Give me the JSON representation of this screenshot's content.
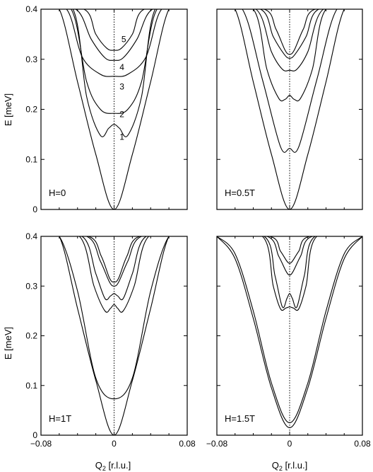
{
  "figure": {
    "ylabel": "E [meV]",
    "xlabel": "Q",
    "xlabel_sub": "2",
    "xlabel_unit": " [r.l.u.]"
  },
  "chart_data": [
    {
      "type": "line",
      "panel_label": "H=0",
      "xlim": [
        -0.08,
        0.08
      ],
      "ylim": [
        0,
        0.4
      ],
      "x_ticks": [
        "−0.08",
        "0",
        "0.08"
      ],
      "y_ticks": [
        "0",
        "0.1",
        "0.2",
        "0.3",
        "0.4"
      ],
      "zero_line": "dotted",
      "branch_labels": [
        {
          "text": "1",
          "x": 0.006,
          "y": 0.145
        },
        {
          "text": "2",
          "x": 0.006,
          "y": 0.19
        },
        {
          "text": "3",
          "x": 0.006,
          "y": 0.245
        },
        {
          "text": "4",
          "x": 0.006,
          "y": 0.284
        },
        {
          "text": "5",
          "x": 0.008,
          "y": 0.34
        }
      ],
      "series": [
        {
          "x": [
            -0.08,
            -0.06,
            -0.04,
            -0.02,
            0,
            0.02,
            0.04,
            0.06,
            0.08
          ],
          "values": [
            0.4,
            0.4,
            0.255,
            0.11,
            0.0,
            0.11,
            0.255,
            0.4,
            0.4
          ]
        },
        {
          "x": [
            -0.08,
            -0.045,
            -0.03,
            -0.015,
            -0.006,
            0,
            0.006,
            0.015,
            0.03,
            0.045,
            0.08
          ],
          "values": [
            0.4,
            0.4,
            0.225,
            0.148,
            0.162,
            0.17,
            0.162,
            0.148,
            0.225,
            0.4,
            0.4
          ]
        },
        {
          "x": [
            -0.08,
            -0.047,
            -0.03,
            -0.015,
            0,
            0.015,
            0.03,
            0.047,
            0.08
          ],
          "values": [
            0.4,
            0.4,
            0.255,
            0.2,
            0.192,
            0.2,
            0.255,
            0.4,
            0.4
          ]
        },
        {
          "x": [
            -0.08,
            -0.052,
            -0.035,
            -0.015,
            0,
            0.015,
            0.035,
            0.052,
            0.08
          ],
          "values": [
            0.4,
            0.4,
            0.305,
            0.27,
            0.266,
            0.27,
            0.305,
            0.4,
            0.4
          ]
        },
        {
          "x": [
            -0.08,
            -0.042,
            -0.025,
            -0.01,
            0,
            0.01,
            0.025,
            0.042,
            0.08
          ],
          "values": [
            0.4,
            0.4,
            0.34,
            0.303,
            0.298,
            0.303,
            0.34,
            0.4,
            0.4
          ]
        },
        {
          "x": [
            -0.08,
            -0.033,
            -0.02,
            -0.008,
            0,
            0.008,
            0.02,
            0.033,
            0.08
          ],
          "values": [
            0.4,
            0.4,
            0.35,
            0.322,
            0.318,
            0.322,
            0.35,
            0.4,
            0.4
          ]
        }
      ]
    },
    {
      "type": "line",
      "panel_label": "H=0.5T",
      "xlim": [
        -0.08,
        0.08
      ],
      "ylim": [
        0,
        0.4
      ],
      "x_ticks": [
        "−0.08",
        "0",
        "0.08"
      ],
      "y_ticks": [
        "0",
        "0.1",
        "0.2",
        "0.3",
        "0.4"
      ],
      "zero_line": "dotted",
      "branch_labels": [],
      "series": [
        {
          "x": [
            -0.08,
            -0.06,
            -0.04,
            -0.02,
            0,
            0.02,
            0.04,
            0.06,
            0.08
          ],
          "values": [
            0.4,
            0.4,
            0.255,
            0.11,
            0.0,
            0.11,
            0.255,
            0.4,
            0.4
          ]
        },
        {
          "x": [
            -0.08,
            -0.052,
            -0.03,
            -0.01,
            0,
            0.01,
            0.03,
            0.052,
            0.08
          ],
          "values": [
            0.4,
            0.4,
            0.26,
            0.125,
            0.122,
            0.125,
            0.26,
            0.4,
            0.4
          ]
        },
        {
          "x": [
            -0.08,
            -0.04,
            -0.025,
            -0.012,
            -0.005,
            0,
            0.005,
            0.012,
            0.025,
            0.04,
            0.08
          ],
          "values": [
            0.4,
            0.4,
            0.28,
            0.222,
            0.22,
            0.228,
            0.22,
            0.222,
            0.28,
            0.4,
            0.4
          ]
        },
        {
          "x": [
            -0.08,
            -0.037,
            -0.02,
            -0.008,
            0,
            0.008,
            0.02,
            0.037,
            0.08
          ],
          "values": [
            0.4,
            0.4,
            0.315,
            0.28,
            0.278,
            0.28,
            0.315,
            0.4,
            0.4
          ]
        },
        {
          "x": [
            -0.08,
            -0.032,
            -0.018,
            -0.006,
            0,
            0.006,
            0.018,
            0.032,
            0.08
          ],
          "values": [
            0.4,
            0.4,
            0.345,
            0.31,
            0.302,
            0.31,
            0.345,
            0.4,
            0.4
          ]
        },
        {
          "x": [
            -0.08,
            -0.028,
            -0.015,
            -0.005,
            0,
            0.005,
            0.015,
            0.028,
            0.08
          ],
          "values": [
            0.4,
            0.4,
            0.36,
            0.318,
            0.31,
            0.318,
            0.36,
            0.4,
            0.4
          ]
        }
      ]
    },
    {
      "type": "line",
      "panel_label": "H=1T",
      "xlim": [
        -0.08,
        0.08
      ],
      "ylim": [
        0,
        0.4
      ],
      "x_ticks": [
        "−0.08",
        "0",
        "0.08"
      ],
      "y_ticks": [
        "0",
        "0.1",
        "0.2",
        "0.3",
        "0.4"
      ],
      "zero_line": "dotted",
      "branch_labels": [],
      "series": [
        {
          "x": [
            -0.08,
            -0.06,
            -0.04,
            -0.02,
            0,
            0.02,
            0.04,
            0.06,
            0.08
          ],
          "values": [
            0.4,
            0.4,
            0.255,
            0.11,
            0.0,
            0.11,
            0.255,
            0.4,
            0.4
          ]
        },
        {
          "x": [
            -0.08,
            -0.06,
            -0.04,
            -0.02,
            0,
            0.02,
            0.04,
            0.06,
            0.08
          ],
          "values": [
            0.4,
            0.4,
            0.29,
            0.115,
            0.073,
            0.115,
            0.29,
            0.4,
            0.4
          ]
        },
        {
          "x": [
            -0.08,
            -0.038,
            -0.022,
            -0.01,
            -0.004,
            0,
            0.004,
            0.01,
            0.022,
            0.038,
            0.08
          ],
          "values": [
            0.4,
            0.4,
            0.3,
            0.25,
            0.255,
            0.263,
            0.255,
            0.25,
            0.3,
            0.4,
            0.4
          ]
        },
        {
          "x": [
            -0.08,
            -0.035,
            -0.02,
            -0.01,
            -0.004,
            0,
            0.004,
            0.01,
            0.02,
            0.035,
            0.08
          ],
          "values": [
            0.4,
            0.4,
            0.325,
            0.275,
            0.28,
            0.285,
            0.28,
            0.275,
            0.325,
            0.4,
            0.4
          ]
        },
        {
          "x": [
            -0.08,
            -0.03,
            -0.015,
            -0.005,
            0,
            0.005,
            0.015,
            0.03,
            0.08
          ],
          "values": [
            0.4,
            0.4,
            0.35,
            0.308,
            0.3,
            0.308,
            0.35,
            0.4,
            0.4
          ]
        },
        {
          "x": [
            -0.08,
            -0.028,
            -0.014,
            -0.005,
            0,
            0.005,
            0.014,
            0.028,
            0.08
          ],
          "values": [
            0.4,
            0.4,
            0.36,
            0.316,
            0.308,
            0.316,
            0.36,
            0.4,
            0.4
          ]
        }
      ]
    },
    {
      "type": "line",
      "panel_label": "H=1.5T",
      "xlim": [
        -0.08,
        0.08
      ],
      "ylim": [
        0,
        0.4
      ],
      "x_ticks": [
        "−0.08",
        "0",
        "0.08"
      ],
      "y_ticks": [
        "0",
        "0.1",
        "0.2",
        "0.3",
        "0.4"
      ],
      "zero_line": "dotted",
      "branch_labels": [],
      "series": [
        {
          "x": [
            -0.08,
            -0.06,
            -0.04,
            -0.02,
            0,
            0.02,
            0.04,
            0.06,
            0.08
          ],
          "values": [
            0.4,
            0.355,
            0.235,
            0.095,
            0.015,
            0.095,
            0.235,
            0.355,
            0.4
          ]
        },
        {
          "x": [
            -0.08,
            -0.06,
            -0.04,
            -0.02,
            0,
            0.02,
            0.04,
            0.06,
            0.08
          ],
          "values": [
            0.4,
            0.365,
            0.25,
            0.105,
            0.025,
            0.105,
            0.25,
            0.365,
            0.4
          ]
        },
        {
          "x": [
            -0.08,
            -0.03,
            -0.018,
            -0.01,
            -0.004,
            0,
            0.004,
            0.01,
            0.018,
            0.03,
            0.08
          ],
          "values": [
            0.4,
            0.4,
            0.3,
            0.254,
            0.256,
            0.258,
            0.256,
            0.254,
            0.3,
            0.4,
            0.4
          ]
        },
        {
          "x": [
            -0.08,
            -0.028,
            -0.016,
            -0.008,
            -0.003,
            0,
            0.003,
            0.008,
            0.016,
            0.028,
            0.08
          ],
          "values": [
            0.4,
            0.4,
            0.32,
            0.258,
            0.275,
            0.285,
            0.275,
            0.258,
            0.32,
            0.4,
            0.4
          ]
        },
        {
          "x": [
            -0.08,
            -0.025,
            -0.012,
            -0.004,
            0,
            0.004,
            0.012,
            0.025,
            0.08
          ],
          "values": [
            0.4,
            0.4,
            0.36,
            0.33,
            0.322,
            0.33,
            0.36,
            0.4,
            0.4
          ]
        },
        {
          "x": [
            -0.08,
            -0.022,
            -0.01,
            -0.003,
            0,
            0.003,
            0.01,
            0.022,
            0.08
          ],
          "values": [
            0.4,
            0.4,
            0.37,
            0.35,
            0.346,
            0.35,
            0.37,
            0.4,
            0.4
          ]
        }
      ]
    }
  ]
}
